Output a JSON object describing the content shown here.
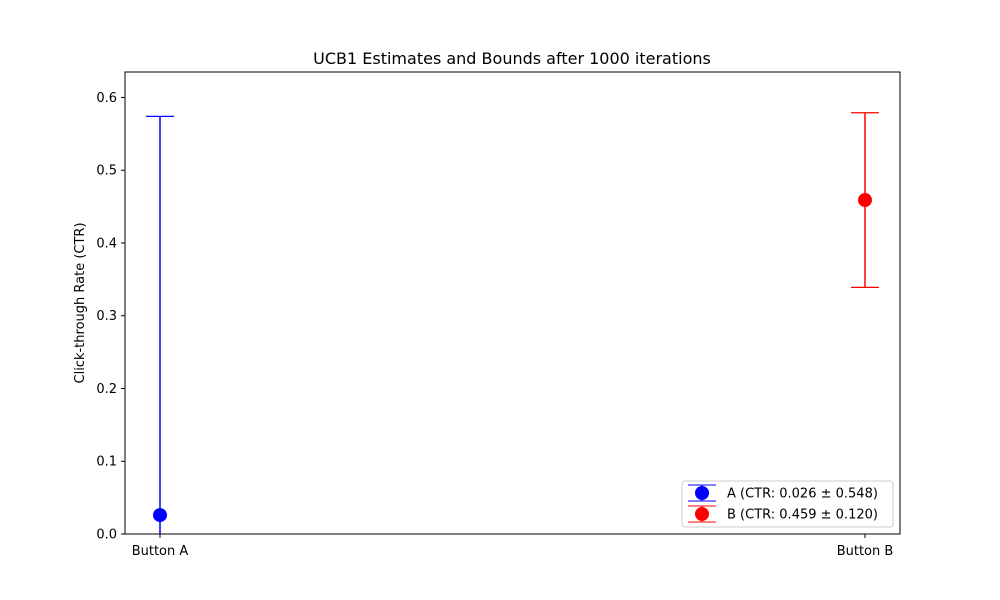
{
  "chart_data": {
    "type": "errorbar",
    "title": "UCB1 Estimates and Bounds after 1000 iterations",
    "ylabel": "Click-through Rate (CTR)",
    "xlabel": "",
    "categories": [
      "Button A",
      "Button B"
    ],
    "ylim": [
      0,
      0.635
    ],
    "yticks": [
      0.0,
      0.1,
      0.2,
      0.3,
      0.4,
      0.5,
      0.6
    ],
    "ytick_labels": [
      "0.0",
      "0.1",
      "0.2",
      "0.3",
      "0.4",
      "0.5",
      "0.6"
    ],
    "grid": false,
    "legend_position": "lower-right",
    "series": [
      {
        "category": "Button A",
        "estimate": 0.026,
        "bound": 0.548,
        "lower": 0.0,
        "upper": 0.574,
        "color": "#0000ff",
        "legend_label": "A (CTR: 0.026 ± 0.548)"
      },
      {
        "category": "Button B",
        "estimate": 0.459,
        "bound": 0.12,
        "lower": 0.339,
        "upper": 0.579,
        "color": "#ff0000",
        "legend_label": "B (CTR: 0.459 ± 0.120)"
      }
    ]
  }
}
